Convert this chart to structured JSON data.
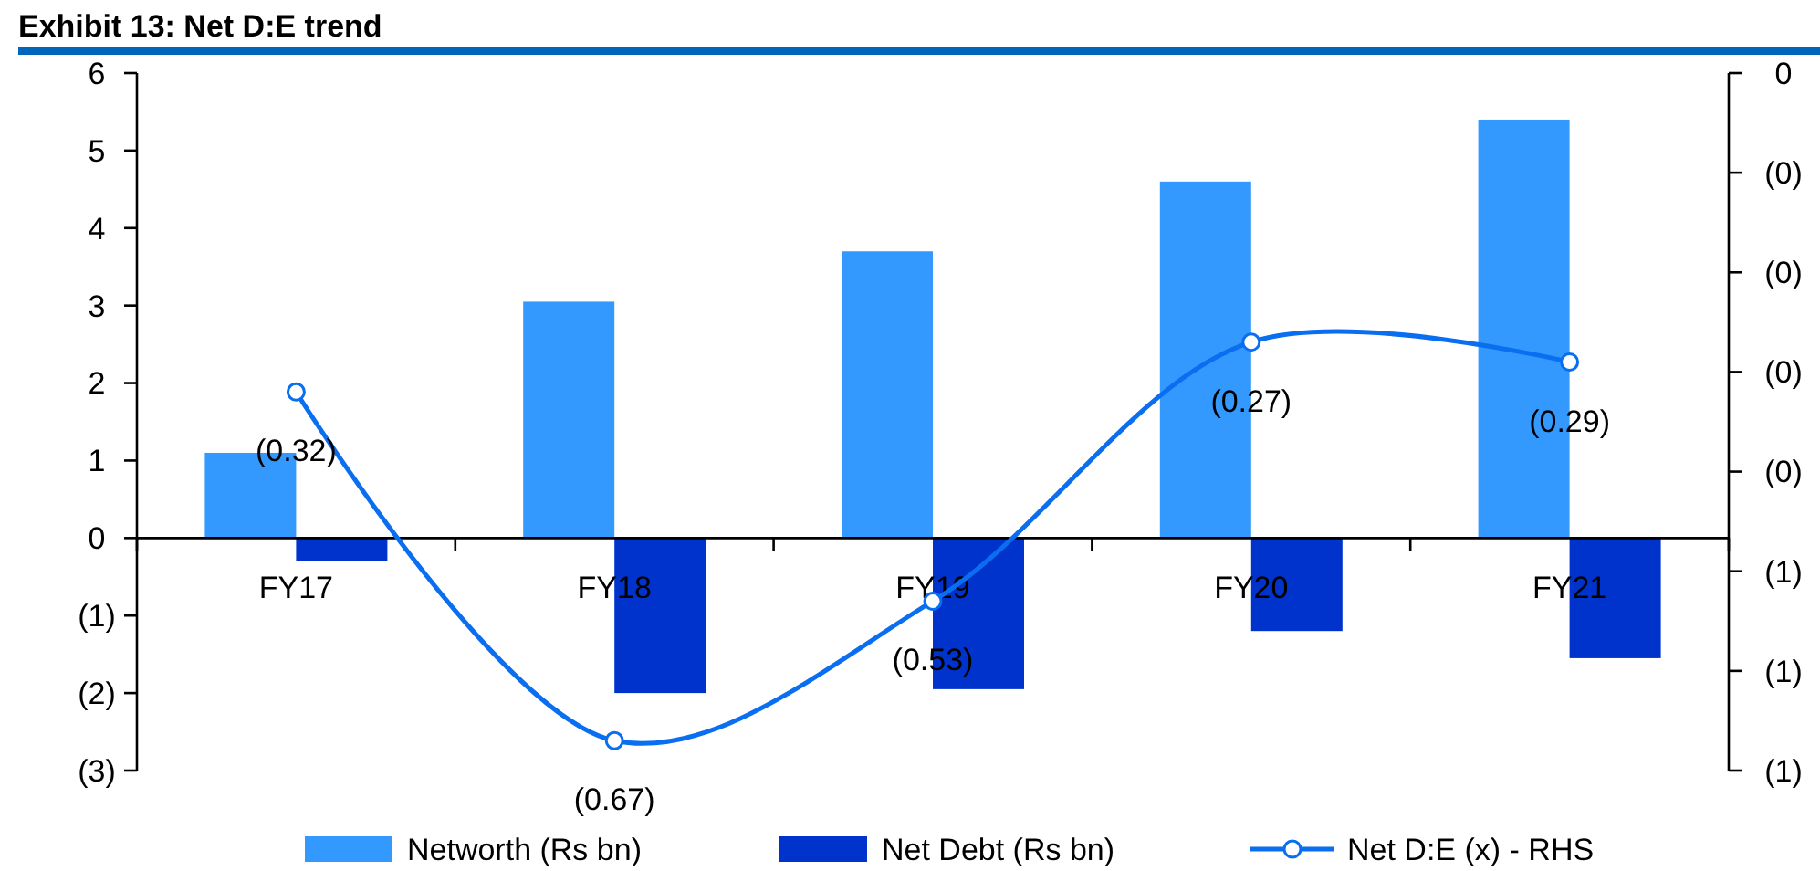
{
  "chart_data": {
    "type": "bar",
    "title": "Exhibit 13: Net D:E trend",
    "categories": [
      "FY17",
      "FY18",
      "FY19",
      "FY20",
      "FY21"
    ],
    "series": [
      {
        "name": "Networth (Rs bn)",
        "color": "#3399ff",
        "values": [
          1.1,
          3.05,
          3.7,
          4.6,
          5.4
        ]
      },
      {
        "name": "Net Debt (Rs bn)",
        "color": "#0033cc",
        "values": [
          -0.3,
          -2.0,
          -1.95,
          -1.2,
          -1.55
        ]
      },
      {
        "name": "Net D:E (x) - RHS",
        "type": "line",
        "axis": "y2",
        "color": "#0a6ef0",
        "marker": "circle",
        "values": [
          -0.32,
          -0.67,
          -0.53,
          -0.27,
          -0.29
        ],
        "value_labels": [
          "(0.32)",
          "(0.67)",
          "(0.53)",
          "(0.27)",
          "(0.29)"
        ]
      }
    ],
    "ylim": [
      -3,
      6
    ],
    "yticks": [
      {
        "value": -3,
        "label": "(3)"
      },
      {
        "value": -2,
        "label": "(2)"
      },
      {
        "value": -1,
        "label": "(1)"
      },
      0,
      1,
      2,
      3,
      4,
      5,
      6
    ],
    "y2lim": [
      -0.7,
      0
    ],
    "y2ticks": [
      {
        "value": -0.7,
        "label": "(1)"
      },
      {
        "value": -0.6,
        "label": "(1)"
      },
      {
        "value": -0.5,
        "label": "(1)"
      },
      {
        "value": -0.4,
        "label": "(0)"
      },
      {
        "value": -0.3,
        "label": "(0)"
      },
      {
        "value": -0.2,
        "label": "(0)"
      },
      {
        "value": -0.1,
        "label": "(0)"
      },
      0
    ],
    "legend": "bottom",
    "grid": false
  }
}
